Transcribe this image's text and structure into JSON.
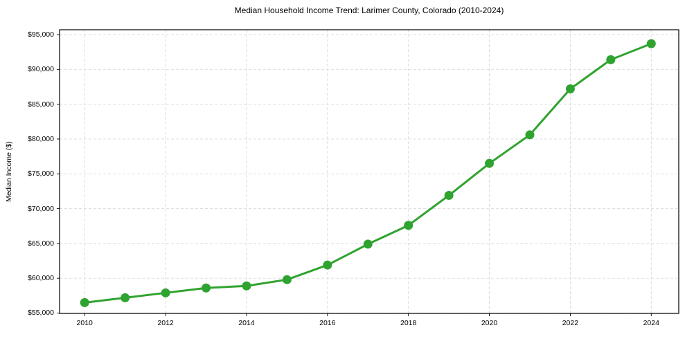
{
  "chart": {
    "title": "Median Household Income Trend: Larimer County, Colorado (2010-2024)",
    "y_axis_label": "Median Income ($)"
  },
  "colors": {
    "line": "#2fa32f",
    "marker": "#2fa32f",
    "grid": "#d9d9d9",
    "spine": "#000000",
    "text": "#000000",
    "background": "#ffffff"
  },
  "chart_data": {
    "type": "line",
    "title": "Median Household Income Trend: Larimer County, Colorado (2010-2024)",
    "xlabel": "",
    "ylabel": "Median Income ($)",
    "x": [
      2010,
      2011,
      2012,
      2013,
      2014,
      2015,
      2016,
      2017,
      2018,
      2019,
      2020,
      2021,
      2022,
      2023,
      2024
    ],
    "values": [
      56500,
      57200,
      57900,
      58600,
      58900,
      59800,
      61900,
      64900,
      67600,
      71900,
      76500,
      80600,
      87200,
      91400,
      93700
    ],
    "x_ticks": {
      "values": [
        2010,
        2012,
        2014,
        2016,
        2018,
        2020,
        2022,
        2024
      ],
      "labels": [
        "2010",
        "2012",
        "2014",
        "2016",
        "2018",
        "2020",
        "2022",
        "2024"
      ]
    },
    "y_ticks": {
      "values": [
        55000,
        60000,
        65000,
        70000,
        75000,
        80000,
        85000,
        90000,
        95000
      ],
      "labels": [
        "$55,000",
        "$60,000",
        "$65,000",
        "$70,000",
        "$75,000",
        "$80,000",
        "$85,000",
        "$90,000",
        "$95,000"
      ]
    },
    "xlim": [
      2009.38,
      2024.68
    ],
    "ylim": [
      54950,
      95700
    ],
    "grid": true,
    "grid_style": "dashed",
    "legend_position": "none",
    "marker": "circle"
  }
}
